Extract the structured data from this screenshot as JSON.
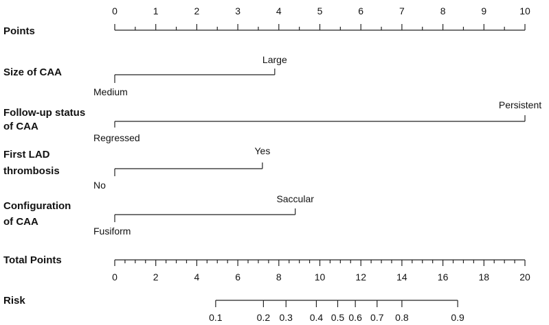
{
  "chart_data": {
    "type": "nomogram",
    "points_axis": {
      "label": "Points",
      "range": [
        0,
        10
      ],
      "major_ticks": [
        0,
        1,
        2,
        3,
        4,
        5,
        6,
        7,
        8,
        9,
        10
      ],
      "tick_labels": [
        "0",
        "1",
        "2",
        "3",
        "4",
        "5",
        "6",
        "7",
        "8",
        "9",
        "10"
      ],
      "minor_step": 0.5
    },
    "predictors": [
      {
        "label_lines": [
          "Size of CAA"
        ],
        "reference": {
          "label": "Medium",
          "points": 0
        },
        "levels": [
          {
            "label": "Large",
            "points": 3.9
          }
        ]
      },
      {
        "label_lines": [
          "Follow-up status",
          "of CAA"
        ],
        "reference": {
          "label": "Regressed",
          "points": 0
        },
        "levels": [
          {
            "label": "Persistent",
            "points": 10
          }
        ]
      },
      {
        "label_lines": [
          "First LAD",
          "thrombosis"
        ],
        "reference": {
          "label": "No",
          "points": 0
        },
        "levels": [
          {
            "label": "Yes",
            "points": 3.6
          }
        ]
      },
      {
        "label_lines": [
          "Configuration",
          "of CAA"
        ],
        "reference": {
          "label": "Fusiform",
          "points": 0
        },
        "levels": [
          {
            "label": "Saccular",
            "points": 4.4
          }
        ]
      }
    ],
    "total_points_axis": {
      "label": "Total  Points",
      "range": [
        0,
        20
      ],
      "major_ticks": [
        0,
        2,
        4,
        6,
        8,
        10,
        12,
        14,
        16,
        18,
        20
      ],
      "tick_labels": [
        "0",
        "2",
        "4",
        "6",
        "8",
        "10",
        "12",
        "14",
        "16",
        "18",
        "20"
      ],
      "minor_step": 0.5
    },
    "risk_axis": {
      "label": "Risk",
      "values": [
        0.1,
        0.2,
        0.3,
        0.4,
        0.5,
        0.6,
        0.7,
        0.8,
        0.9
      ],
      "tick_labels": [
        "0.1",
        "0.2",
        "0.3",
        "0.4",
        "0.5",
        "0.6",
        "0.7",
        "0.8",
        "0.9"
      ],
      "total_points": [
        4.92,
        7.25,
        8.35,
        9.83,
        10.87,
        11.73,
        12.79,
        14.0,
        16.72
      ]
    }
  }
}
